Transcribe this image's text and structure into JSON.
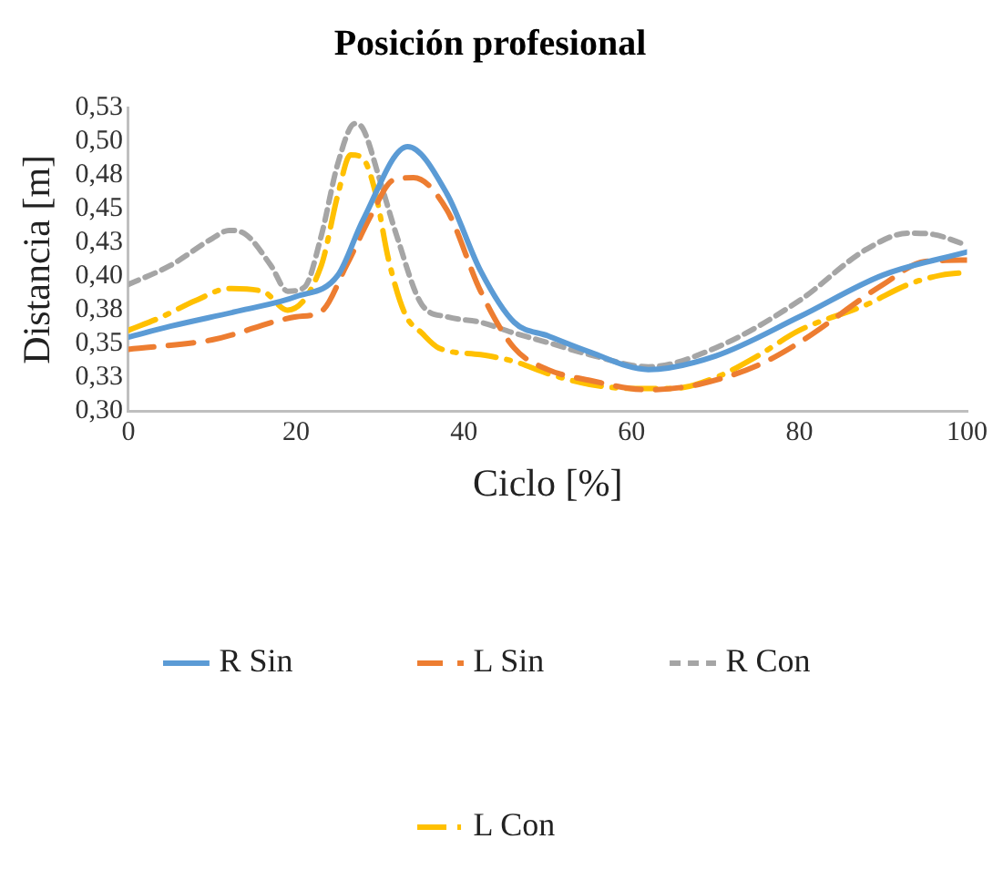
{
  "chart_data": {
    "type": "line",
    "title": "Posición profesional",
    "xlabel": "Ciclo [%]",
    "ylabel": "Distancia [m]",
    "xlim": [
      0,
      100
    ],
    "xticks": [
      0,
      20,
      40,
      60,
      80,
      100
    ],
    "ylim": [
      0.3,
      0.525
    ],
    "yticks": [
      {
        "value": 0.3,
        "label": "0,30"
      },
      {
        "value": 0.325,
        "label": "0,33"
      },
      {
        "value": 0.35,
        "label": "0,35"
      },
      {
        "value": 0.375,
        "label": "0,38"
      },
      {
        "value": 0.4,
        "label": "0,40"
      },
      {
        "value": 0.425,
        "label": "0,43"
      },
      {
        "value": 0.45,
        "label": "0,45"
      },
      {
        "value": 0.475,
        "label": "0,48"
      },
      {
        "value": 0.5,
        "label": "0,50"
      },
      {
        "value": 0.525,
        "label": "0,53"
      }
    ],
    "grid": false,
    "legend": "bottom",
    "marker": "none",
    "series": [
      {
        "name": "R Sin",
        "color": "#5b9bd5",
        "line_style": "solid",
        "x": [
          0,
          5,
          13.6,
          20,
          25,
          28,
          33.3,
          38,
          42,
          46,
          50,
          55,
          62,
          70,
          80,
          90,
          100
        ],
        "values": [
          0.355,
          0.363,
          0.375,
          0.385,
          0.401,
          0.442,
          0.496,
          0.461,
          0.404,
          0.366,
          0.356,
          0.344,
          0.331,
          0.341,
          0.37,
          0.401,
          0.418
        ]
      },
      {
        "name": "L Sin",
        "color": "#ed7d31",
        "line_style": "dashed",
        "x": [
          0,
          10,
          20,
          23,
          26,
          29,
          31.5,
          34,
          38,
          42,
          46,
          50,
          55,
          62,
          68,
          75,
          80,
          90,
          95,
          100
        ],
        "values": [
          0.346,
          0.353,
          0.37,
          0.374,
          0.408,
          0.446,
          0.471,
          0.473,
          0.449,
          0.389,
          0.347,
          0.331,
          0.323,
          0.316,
          0.32,
          0.334,
          0.351,
          0.394,
          0.411,
          0.412
        ]
      },
      {
        "name": "R Con",
        "color": "#a5a5a5",
        "line_style": "dotted",
        "x": [
          0,
          5,
          10,
          12,
          14,
          17,
          19,
          21,
          23,
          25,
          27,
          28,
          30,
          32,
          35,
          38,
          42,
          46,
          50,
          55,
          62,
          70,
          80,
          88,
          93,
          96,
          100
        ],
        "values": [
          0.394,
          0.408,
          0.428,
          0.434,
          0.431,
          0.408,
          0.389,
          0.392,
          0.43,
          0.484,
          0.513,
          0.509,
          0.471,
          0.43,
          0.379,
          0.37,
          0.366,
          0.358,
          0.351,
          0.342,
          0.333,
          0.347,
          0.382,
          0.42,
          0.432,
          0.431,
          0.423
        ]
      },
      {
        "name": "L Con",
        "color": "#ffc000",
        "line_style": "dashdot",
        "x": [
          0,
          4,
          8,
          12,
          16,
          19,
          23,
          25,
          26.5,
          28,
          29.5,
          31,
          33,
          35,
          37,
          42,
          46,
          50,
          55,
          60,
          65,
          70,
          75,
          80,
          88,
          93,
          97,
          100
        ],
        "values": [
          0.36,
          0.37,
          0.382,
          0.391,
          0.389,
          0.375,
          0.408,
          0.461,
          0.49,
          0.487,
          0.461,
          0.413,
          0.372,
          0.358,
          0.347,
          0.342,
          0.337,
          0.328,
          0.32,
          0.317,
          0.317,
          0.325,
          0.341,
          0.36,
          0.379,
          0.394,
          0.401,
          0.403
        ]
      }
    ]
  }
}
